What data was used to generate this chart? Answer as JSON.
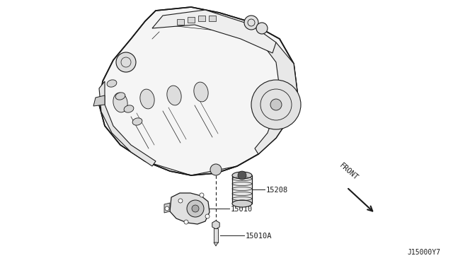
{
  "bg_color": "#ffffff",
  "line_color": "#1a1a1a",
  "label_15208": "15208",
  "label_15010": "15010",
  "label_15010A": "15010A",
  "front_label": "FRONT",
  "diagram_code": "J15000Y7",
  "label_fontsize": 7.5,
  "code_fontsize": 7,
  "front_fontsize": 7.5,
  "figw": 6.4,
  "figh": 3.72,
  "dpi": 100
}
